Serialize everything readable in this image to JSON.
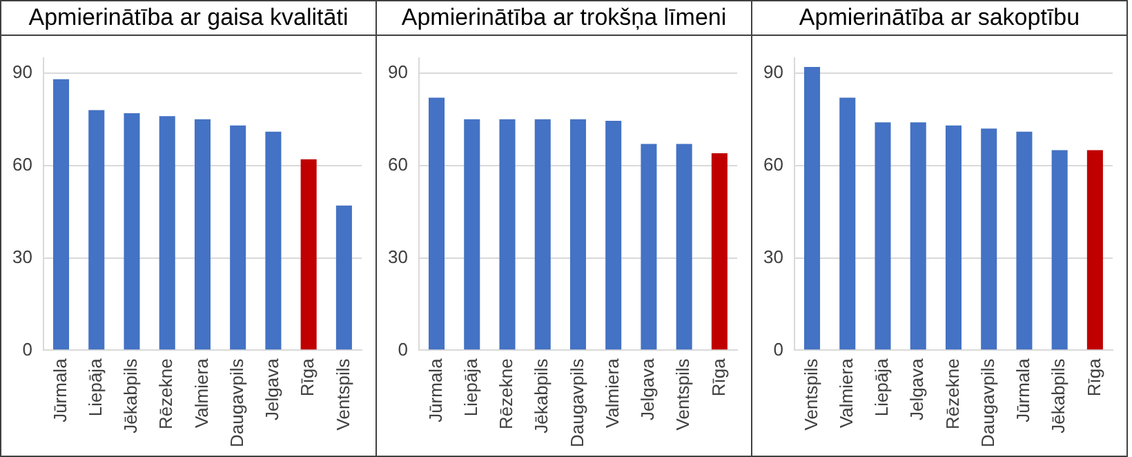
{
  "chart_data": [
    {
      "type": "bar",
      "title": "Apmierinātība ar gaisa kvalitāti",
      "categories": [
        "Jūrmala",
        "Liepāja",
        "Jēkabpils",
        "Rēzekne",
        "Valmiera",
        "Daugavpils",
        "Jelgava",
        "Rīga",
        "Ventspils"
      ],
      "values": [
        88,
        78,
        77,
        76,
        75,
        73,
        71,
        62,
        47
      ],
      "colors": [
        "#4472c4",
        "#4472c4",
        "#4472c4",
        "#4472c4",
        "#4472c4",
        "#4472c4",
        "#4472c4",
        "#c00000",
        "#4472c4"
      ],
      "ylim": [
        0,
        95
      ],
      "yticks": [
        0,
        30,
        60,
        90
      ],
      "grid": "y"
    },
    {
      "type": "bar",
      "title": "Apmierinātība ar trokšņa līmeni",
      "categories": [
        "Jūrmala",
        "Liepāja",
        "Rēzekne",
        "Jēkabpils",
        "Daugavpils",
        "Valmiera",
        "Jelgava",
        "Ventspils",
        "Rīga"
      ],
      "values": [
        82,
        75,
        75,
        75,
        75,
        74.5,
        67,
        67,
        64
      ],
      "colors": [
        "#4472c4",
        "#4472c4",
        "#4472c4",
        "#4472c4",
        "#4472c4",
        "#4472c4",
        "#4472c4",
        "#4472c4",
        "#c00000"
      ],
      "ylim": [
        0,
        95
      ],
      "yticks": [
        0,
        30,
        60,
        90
      ],
      "grid": "y"
    },
    {
      "type": "bar",
      "title": "Apmierinātība ar sakoptību",
      "categories": [
        "Ventspils",
        "Valmiera",
        "Liepāja",
        "Jelgava",
        "Rēzekne",
        "Daugavpils",
        "Jūrmala",
        "Jēkabpils",
        "Rīga"
      ],
      "values": [
        92,
        82,
        74,
        74,
        73,
        72,
        71,
        65,
        65
      ],
      "colors": [
        "#4472c4",
        "#4472c4",
        "#4472c4",
        "#4472c4",
        "#4472c4",
        "#4472c4",
        "#4472c4",
        "#4472c4",
        "#c00000"
      ],
      "ylim": [
        0,
        95
      ],
      "yticks": [
        0,
        30,
        60,
        90
      ],
      "grid": "y"
    }
  ]
}
